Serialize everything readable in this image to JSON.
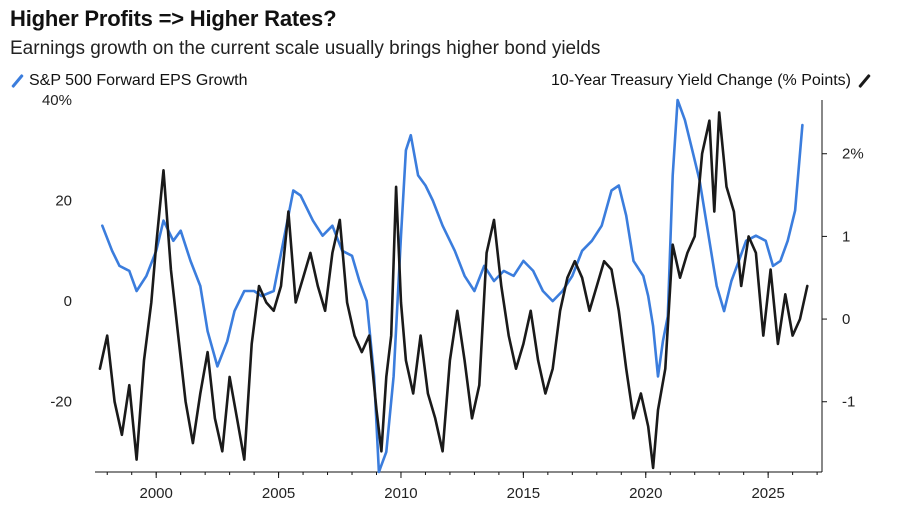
{
  "title": "Higher Profits => Higher Rates?",
  "subtitle": "Earnings growth on the current scale usually brings higher bond yields",
  "legend": {
    "left_label": "S&P 500 Forward EPS Growth",
    "right_label": "10-Year Treasury Yield Change (% Points)"
  },
  "colors": {
    "eps": "#3b7ddd",
    "yield": "#1a1a1a"
  },
  "chart_data": {
    "type": "line",
    "x_axis": {
      "range": [
        1997.5,
        2027.2
      ],
      "ticks": [
        "2000",
        "2005",
        "2010",
        "2015",
        "2020",
        "2025"
      ],
      "tick_values": [
        2000,
        2005,
        2010,
        2015,
        2020,
        2025
      ]
    },
    "left_axis": {
      "range": [
        -34,
        40
      ],
      "ticks": [
        "40%",
        "20",
        "0",
        "-20"
      ],
      "tick_values": [
        40,
        20,
        0,
        -20
      ]
    },
    "right_axis": {
      "range": [
        -1.85,
        2.65
      ],
      "ticks": [
        "2%",
        "1",
        "0",
        "-1"
      ],
      "tick_values": [
        2,
        1,
        0,
        -1
      ]
    },
    "series": [
      {
        "name": "S&P 500 Forward EPS Growth",
        "axis": "left",
        "x": [
          1997.8,
          1998.2,
          1998.5,
          1998.9,
          1999.2,
          1999.6,
          2000.0,
          2000.3,
          2000.7,
          2001.0,
          2001.4,
          2001.8,
          2002.1,
          2002.5,
          2002.9,
          2003.2,
          2003.6,
          2004.0,
          2004.3,
          2004.8,
          2005.2,
          2005.6,
          2005.9,
          2006.4,
          2006.8,
          2007.2,
          2007.6,
          2008.0,
          2008.3,
          2008.6,
          2008.9,
          2009.1,
          2009.4,
          2009.7,
          2010.0,
          2010.2,
          2010.4,
          2010.7,
          2011.0,
          2011.3,
          2011.7,
          2012.2,
          2012.6,
          2013.0,
          2013.4,
          2013.8,
          2014.2,
          2014.6,
          2015.0,
          2015.4,
          2015.8,
          2016.2,
          2016.6,
          2017.0,
          2017.4,
          2017.8,
          2018.2,
          2018.6,
          2018.9,
          2019.2,
          2019.5,
          2019.9,
          2020.1,
          2020.3,
          2020.5,
          2020.7,
          2020.9,
          2021.1,
          2021.3,
          2021.6,
          2021.9,
          2022.2,
          2022.6,
          2022.9,
          2023.2,
          2023.5,
          2023.8,
          2024.1,
          2024.5,
          2024.9,
          2025.2,
          2025.5,
          2025.8,
          2026.1,
          2026.4
        ],
        "values": [
          15,
          10,
          7,
          6,
          2,
          5,
          10,
          16,
          12,
          14,
          8,
          3,
          -6,
          -13,
          -8,
          -2,
          2,
          2,
          1,
          2,
          12,
          22,
          21,
          16,
          13,
          15,
          10,
          9,
          4,
          0,
          -15,
          -34,
          -30,
          -15,
          13,
          30,
          33,
          25,
          23,
          20,
          15,
          10,
          5,
          2,
          7,
          4,
          6,
          5,
          8,
          6,
          2,
          0,
          2,
          5,
          10,
          12,
          15,
          22,
          23,
          17,
          8,
          5,
          1,
          -5,
          -15,
          -8,
          -3,
          25,
          40,
          36,
          30,
          24,
          12,
          3,
          -2,
          4,
          8,
          12,
          13,
          12,
          7,
          8,
          12,
          18,
          35
        ]
      },
      {
        "name": "10-Year Treasury Yield Change (% Points)",
        "axis": "right",
        "x": [
          1997.7,
          1998.0,
          1998.3,
          1998.6,
          1998.9,
          1999.2,
          1999.5,
          1999.8,
          2000.0,
          2000.3,
          2000.6,
          2000.9,
          2001.2,
          2001.5,
          2001.8,
          2002.1,
          2002.4,
          2002.7,
          2003.0,
          2003.3,
          2003.6,
          2003.9,
          2004.2,
          2004.5,
          2004.8,
          2005.1,
          2005.4,
          2005.7,
          2006.0,
          2006.3,
          2006.6,
          2006.9,
          2007.2,
          2007.5,
          2007.8,
          2008.1,
          2008.4,
          2008.7,
          2009.0,
          2009.2,
          2009.4,
          2009.6,
          2009.8,
          2010.0,
          2010.2,
          2010.5,
          2010.8,
          2011.1,
          2011.4,
          2011.7,
          2012.0,
          2012.3,
          2012.6,
          2012.9,
          2013.2,
          2013.5,
          2013.8,
          2014.1,
          2014.4,
          2014.7,
          2015.0,
          2015.3,
          2015.6,
          2015.9,
          2016.2,
          2016.5,
          2016.8,
          2017.1,
          2017.4,
          2017.7,
          2018.0,
          2018.3,
          2018.6,
          2018.9,
          2019.2,
          2019.5,
          2019.8,
          2020.1,
          2020.3,
          2020.5,
          2020.8,
          2021.1,
          2021.4,
          2021.7,
          2022.0,
          2022.3,
          2022.6,
          2022.8,
          2023.0,
          2023.3,
          2023.6,
          2023.9,
          2024.2,
          2024.5,
          2024.8,
          2025.1,
          2025.4,
          2025.7,
          2026.0,
          2026.3,
          2026.6
        ],
        "values": [
          -0.6,
          -0.2,
          -1.0,
          -1.4,
          -0.8,
          -1.7,
          -0.5,
          0.2,
          0.9,
          1.8,
          0.6,
          -0.2,
          -1.0,
          -1.5,
          -0.9,
          -0.4,
          -1.2,
          -1.6,
          -0.7,
          -1.2,
          -1.7,
          -0.3,
          0.4,
          0.2,
          0.1,
          0.4,
          1.3,
          0.2,
          0.5,
          0.8,
          0.4,
          0.1,
          0.8,
          1.2,
          0.2,
          -0.2,
          -0.4,
          -0.2,
          -1.1,
          -1.6,
          -0.7,
          -0.2,
          1.6,
          0.2,
          -0.5,
          -0.9,
          -0.2,
          -0.9,
          -1.2,
          -1.6,
          -0.5,
          0.1,
          -0.5,
          -1.2,
          -0.8,
          0.8,
          1.2,
          0.4,
          -0.2,
          -0.6,
          -0.3,
          0.1,
          -0.5,
          -0.9,
          -0.6,
          0.1,
          0.5,
          0.7,
          0.5,
          0.1,
          0.4,
          0.7,
          0.6,
          0.1,
          -0.6,
          -1.2,
          -0.9,
          -1.3,
          -1.8,
          -1.1,
          -0.6,
          0.9,
          0.5,
          0.8,
          1.0,
          2.0,
          2.4,
          1.3,
          2.5,
          1.6,
          1.3,
          0.4,
          1.0,
          0.8,
          -0.2,
          0.6,
          -0.3,
          0.3,
          -0.2,
          0.0,
          0.4
        ]
      }
    ],
    "grid": false,
    "legend_placement": "top"
  }
}
